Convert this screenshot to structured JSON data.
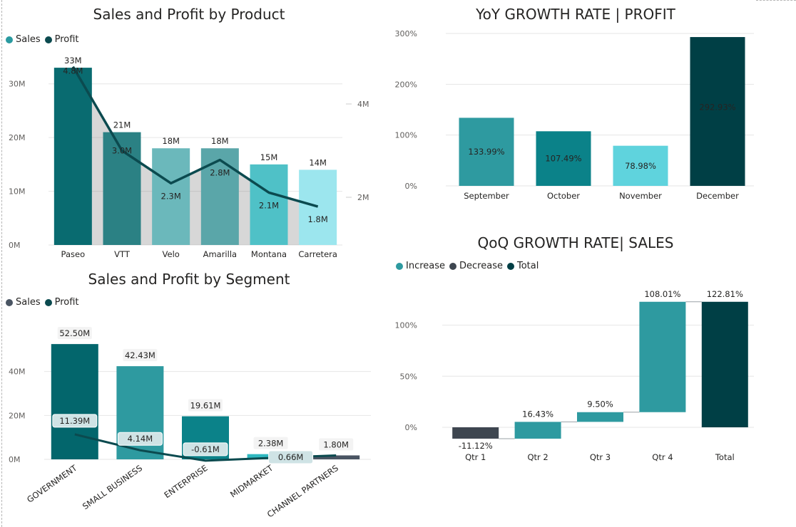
{
  "charts": {
    "product": {
      "title": "Sales and Profit by Product",
      "legend": [
        {
          "label": "Sales",
          "color": "#2a9aa0"
        },
        {
          "label": "Profit",
          "color": "#0b4a4f"
        }
      ]
    },
    "yoy": {
      "title": "YoY GROWTH RATE | PROFIT"
    },
    "segment": {
      "title": "Sales and Profit by Segment",
      "legend": [
        {
          "label": "Sales",
          "color": "#4a5563"
        },
        {
          "label": "Profit",
          "color": "#0b4a4f"
        }
      ]
    },
    "qoq": {
      "title": "QoQ GROWTH RATE| SALES",
      "legend": [
        {
          "label": "Increase",
          "color": "#2e9aa0"
        },
        {
          "label": "Decrease",
          "color": "#3e4650"
        },
        {
          "label": "Total",
          "color": "#003f45"
        }
      ]
    }
  },
  "chart_data": [
    {
      "type": "bar",
      "title": "Sales and Profit by Product",
      "categories": [
        "Paseo",
        "VTT",
        "Velo",
        "Amarilla",
        "Montana",
        "Carretera"
      ],
      "series": [
        {
          "name": "Sales",
          "values": [
            33,
            21,
            18,
            18,
            15,
            14
          ],
          "labels": [
            "33M",
            "21M",
            "18M",
            "18M",
            "15M",
            "14M"
          ],
          "axis": "left"
        },
        {
          "name": "Profit",
          "values": [
            4.8,
            3.0,
            2.3,
            2.8,
            2.1,
            1.8
          ],
          "labels": [
            "4.8M",
            "3.0M",
            "2.3M",
            "2.8M",
            "2.1M",
            "1.8M"
          ],
          "axis": "right",
          "type": "line"
        }
      ],
      "y_left": {
        "ticks": [
          "0M",
          "10M",
          "20M",
          "30M"
        ],
        "ylim": [
          0,
          35
        ]
      },
      "y_right": {
        "ticks": [
          "2M",
          "4M"
        ]
      },
      "colors": [
        "#096b70",
        "#2b8184",
        "#6bb8bb",
        "#5aa6a9",
        "#4fc1c7",
        "#9ce6ee"
      ],
      "grid": true,
      "legend": "top-left"
    },
    {
      "type": "bar",
      "title": "YoY GROWTH RATE | PROFIT",
      "categories": [
        "September",
        "October",
        "November",
        "December"
      ],
      "values": [
        133.99,
        107.49,
        78.98,
        292.93
      ],
      "labels": [
        "133.99%",
        "107.49%",
        "78.98%",
        "292.93%"
      ],
      "colors": [
        "#2e9aa0",
        "#0b8289",
        "#5fd3dd",
        "#003f45"
      ],
      "y_ticks": [
        "0%",
        "100%",
        "200%",
        "300%"
      ],
      "ylim": [
        0,
        300
      ],
      "grid": true
    },
    {
      "type": "bar",
      "title": "Sales and Profit by Segment",
      "categories": [
        "GOVERNMENT",
        "SMALL BUSINESS",
        "ENTERPRISE",
        "MIDMARKET",
        "CHANNEL PARTNERS"
      ],
      "series": [
        {
          "name": "Sales",
          "values": [
            52.5,
            42.43,
            19.61,
            2.38,
            1.8
          ],
          "labels": [
            "52.50M",
            "42.43M",
            "19.61M",
            "2.38M",
            "1.80M"
          ]
        },
        {
          "name": "Profit",
          "values": [
            11.39,
            4.14,
            -0.61,
            0.66,
            1.8
          ],
          "labels": [
            "11.39M",
            "4.14M",
            "-0.61M",
            "0.66M",
            ""
          ],
          "type": "line"
        }
      ],
      "colors": [
        "#03666c",
        "#2e9aa0",
        "#0b8289",
        "#2fb8c0",
        "#4a5563"
      ],
      "y_ticks": [
        "0M",
        "20M",
        "40M"
      ],
      "ylim": [
        0,
        60
      ],
      "grid": true,
      "legend": "top-left"
    },
    {
      "type": "bar",
      "subtype": "waterfall",
      "title": "QoQ GROWTH RATE| SALES",
      "categories": [
        "Qtr 1",
        "Qtr 2",
        "Qtr 3",
        "Qtr 4",
        "Total"
      ],
      "values": [
        -11.12,
        16.43,
        9.5,
        108.01,
        122.81
      ],
      "labels": [
        "-11.12%",
        "16.43%",
        "9.50%",
        "108.01%",
        "122.81%"
      ],
      "kinds": [
        "Decrease",
        "Increase",
        "Increase",
        "Increase",
        "Total"
      ],
      "y_ticks": [
        "0%",
        "50%",
        "100%"
      ],
      "ylim": [
        -15,
        125
      ],
      "grid": true,
      "legend": "top-left"
    }
  ]
}
